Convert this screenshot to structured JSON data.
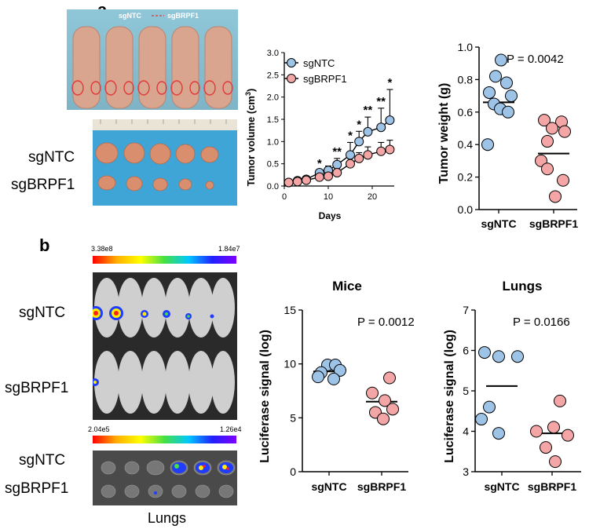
{
  "panel_a": {
    "letter": "a",
    "photo_legend": [
      "sgNTC",
      "sgBRPF1"
    ],
    "row_labels": [
      "sgNTC",
      "sgBRPF1"
    ]
  },
  "panel_b": {
    "letter": "b",
    "mice_scale": {
      "min": "3.38e8",
      "max": "1.84e7"
    },
    "lungs_scale": {
      "min": "2.04e5",
      "max": "1.26e4"
    },
    "mice_row_labels": [
      "sgNTC",
      "sgBRPF1"
    ],
    "lungs_row_labels": [
      "sgNTC",
      "sgBRPF1"
    ],
    "lungs_caption": "Lungs"
  },
  "colors": {
    "sgNTC": "#9dc3e6",
    "sgBRPF1": "#f4a6a6"
  },
  "chart_data": [
    {
      "type": "line",
      "xlabel": "Days",
      "ylabel": "Tumor volume (cm3)",
      "xlim": [
        0,
        25
      ],
      "ylim": [
        0,
        3.0
      ],
      "xticks": [
        0,
        10,
        20
      ],
      "yticks": [
        0.0,
        0.5,
        1.0,
        1.5,
        2.0,
        2.5,
        3.0
      ],
      "legend": "top-left",
      "x": [
        1,
        3,
        5,
        8,
        10,
        12,
        15,
        17,
        19,
        22,
        24
      ],
      "series": [
        {
          "name": "sgNTC",
          "values": [
            0.08,
            0.12,
            0.15,
            0.3,
            0.35,
            0.48,
            0.7,
            1.0,
            1.22,
            1.32,
            1.48
          ],
          "err_upper": [
            0.1,
            0.15,
            0.18,
            0.35,
            0.45,
            0.62,
            0.98,
            1.23,
            1.55,
            1.75,
            2.17
          ]
        },
        {
          "name": "sgBRPF1",
          "values": [
            0.08,
            0.1,
            0.13,
            0.2,
            0.22,
            0.3,
            0.5,
            0.62,
            0.7,
            0.78,
            0.82
          ],
          "err_upper": [
            0.09,
            0.12,
            0.15,
            0.25,
            0.28,
            0.4,
            0.62,
            0.75,
            0.88,
            0.98,
            1.03
          ]
        }
      ],
      "significance": [
        {
          "x": 8,
          "label": "*"
        },
        {
          "x": 12,
          "label": "**"
        },
        {
          "x": 15,
          "label": "*"
        },
        {
          "x": 17,
          "label": "*"
        },
        {
          "x": 19,
          "label": "**"
        },
        {
          "x": 22,
          "label": "**"
        },
        {
          "x": 24,
          "label": "*"
        }
      ]
    },
    {
      "type": "scatter",
      "ylabel": "Tumor weight (g)",
      "categories": [
        "sgNTC",
        "sgBRPF1"
      ],
      "ylim": [
        0.0,
        1.0
      ],
      "yticks": [
        0.0,
        0.2,
        0.4,
        0.6,
        0.8,
        1.0
      ],
      "annotation": "P = 0.0042",
      "series": [
        {
          "name": "sgNTC",
          "values": [
            0.92,
            0.82,
            0.78,
            0.72,
            0.7,
            0.65,
            0.62,
            0.6,
            0.4
          ],
          "mean": 0.66
        },
        {
          "name": "sgBRPF1",
          "values": [
            0.55,
            0.54,
            0.5,
            0.48,
            0.42,
            0.3,
            0.25,
            0.18,
            0.08
          ],
          "mean": 0.345
        }
      ]
    },
    {
      "type": "scatter",
      "title": "Mice",
      "ylabel": "Luciferase signal (log)",
      "categories": [
        "sgNTC",
        "sgBRPF1"
      ],
      "ylim": [
        0,
        15
      ],
      "yticks": [
        0,
        5,
        10,
        15
      ],
      "annotation": "P = 0.0012",
      "series": [
        {
          "name": "sgNTC",
          "values": [
            9.9,
            9.9,
            9.4,
            9.2,
            8.8,
            8.6
          ],
          "mean": 9.3
        },
        {
          "name": "sgBRPF1",
          "values": [
            8.7,
            7.3,
            6.6,
            5.8,
            5.5,
            4.9
          ],
          "mean": 6.5
        }
      ]
    },
    {
      "type": "scatter",
      "title": "Lungs",
      "ylabel": "Luciferase signal (log)",
      "categories": [
        "sgNTC",
        "sgBRPF1"
      ],
      "ylim": [
        3,
        7
      ],
      "yticks": [
        3,
        4,
        5,
        6,
        7
      ],
      "annotation": "P = 0.0166",
      "series": [
        {
          "name": "sgNTC",
          "values": [
            5.95,
            5.85,
            5.85,
            4.6,
            4.3,
            3.95
          ],
          "mean": 5.12
        },
        {
          "name": "sgBRPF1",
          "values": [
            4.75,
            4.1,
            4.0,
            3.9,
            3.6,
            3.25
          ],
          "mean": 3.95
        }
      ]
    }
  ]
}
